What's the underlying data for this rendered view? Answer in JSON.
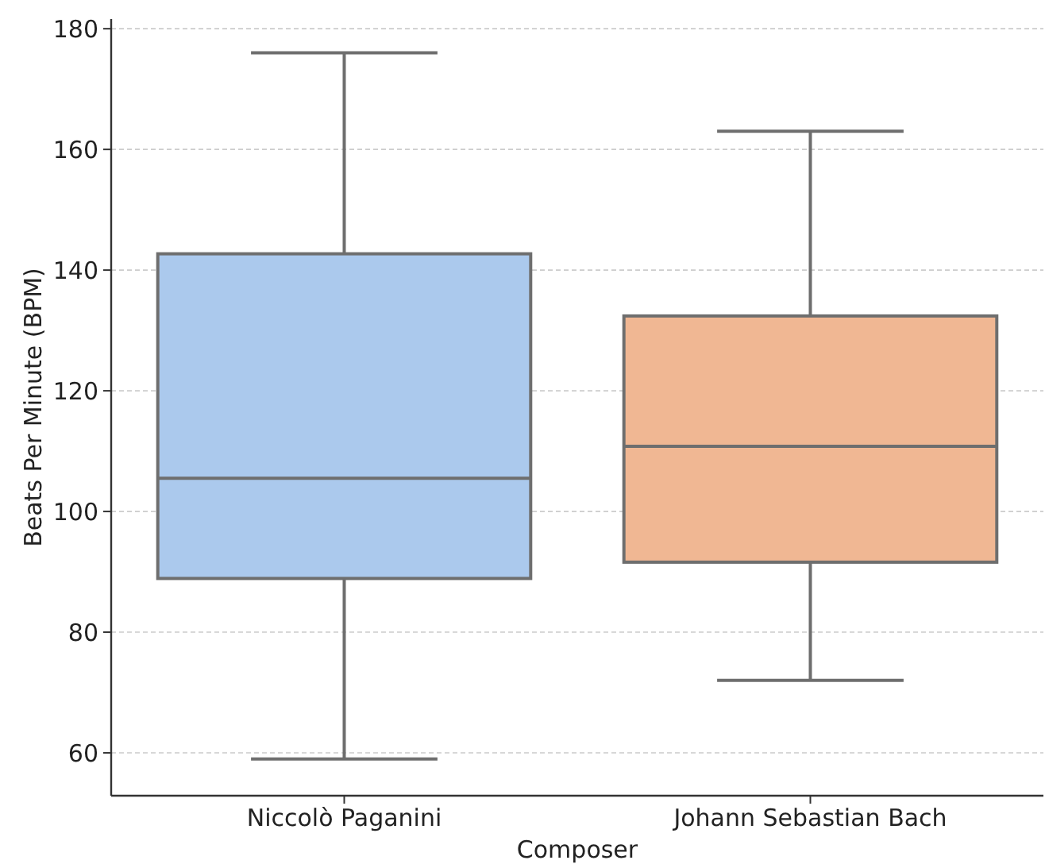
{
  "chart_data": {
    "type": "box",
    "xlabel": "Composer",
    "ylabel": "Beats Per Minute (BPM)",
    "categories": [
      "Niccolò Paganini",
      "Johann Sebastian Bach"
    ],
    "boxes": [
      {
        "low": 59,
        "q1": 88.9,
        "median": 105.5,
        "q3": 142.7,
        "high": 176
      },
      {
        "low": 72,
        "q1": 91.6,
        "median": 110.8,
        "q3": 132.4,
        "high": 163
      }
    ],
    "colors": [
      "#abc9ed",
      "#f0b793"
    ],
    "ylim": [
      52.9,
      181.6
    ],
    "yticks": [
      60,
      80,
      100,
      120,
      140,
      160,
      180
    ],
    "grid": "y"
  }
}
